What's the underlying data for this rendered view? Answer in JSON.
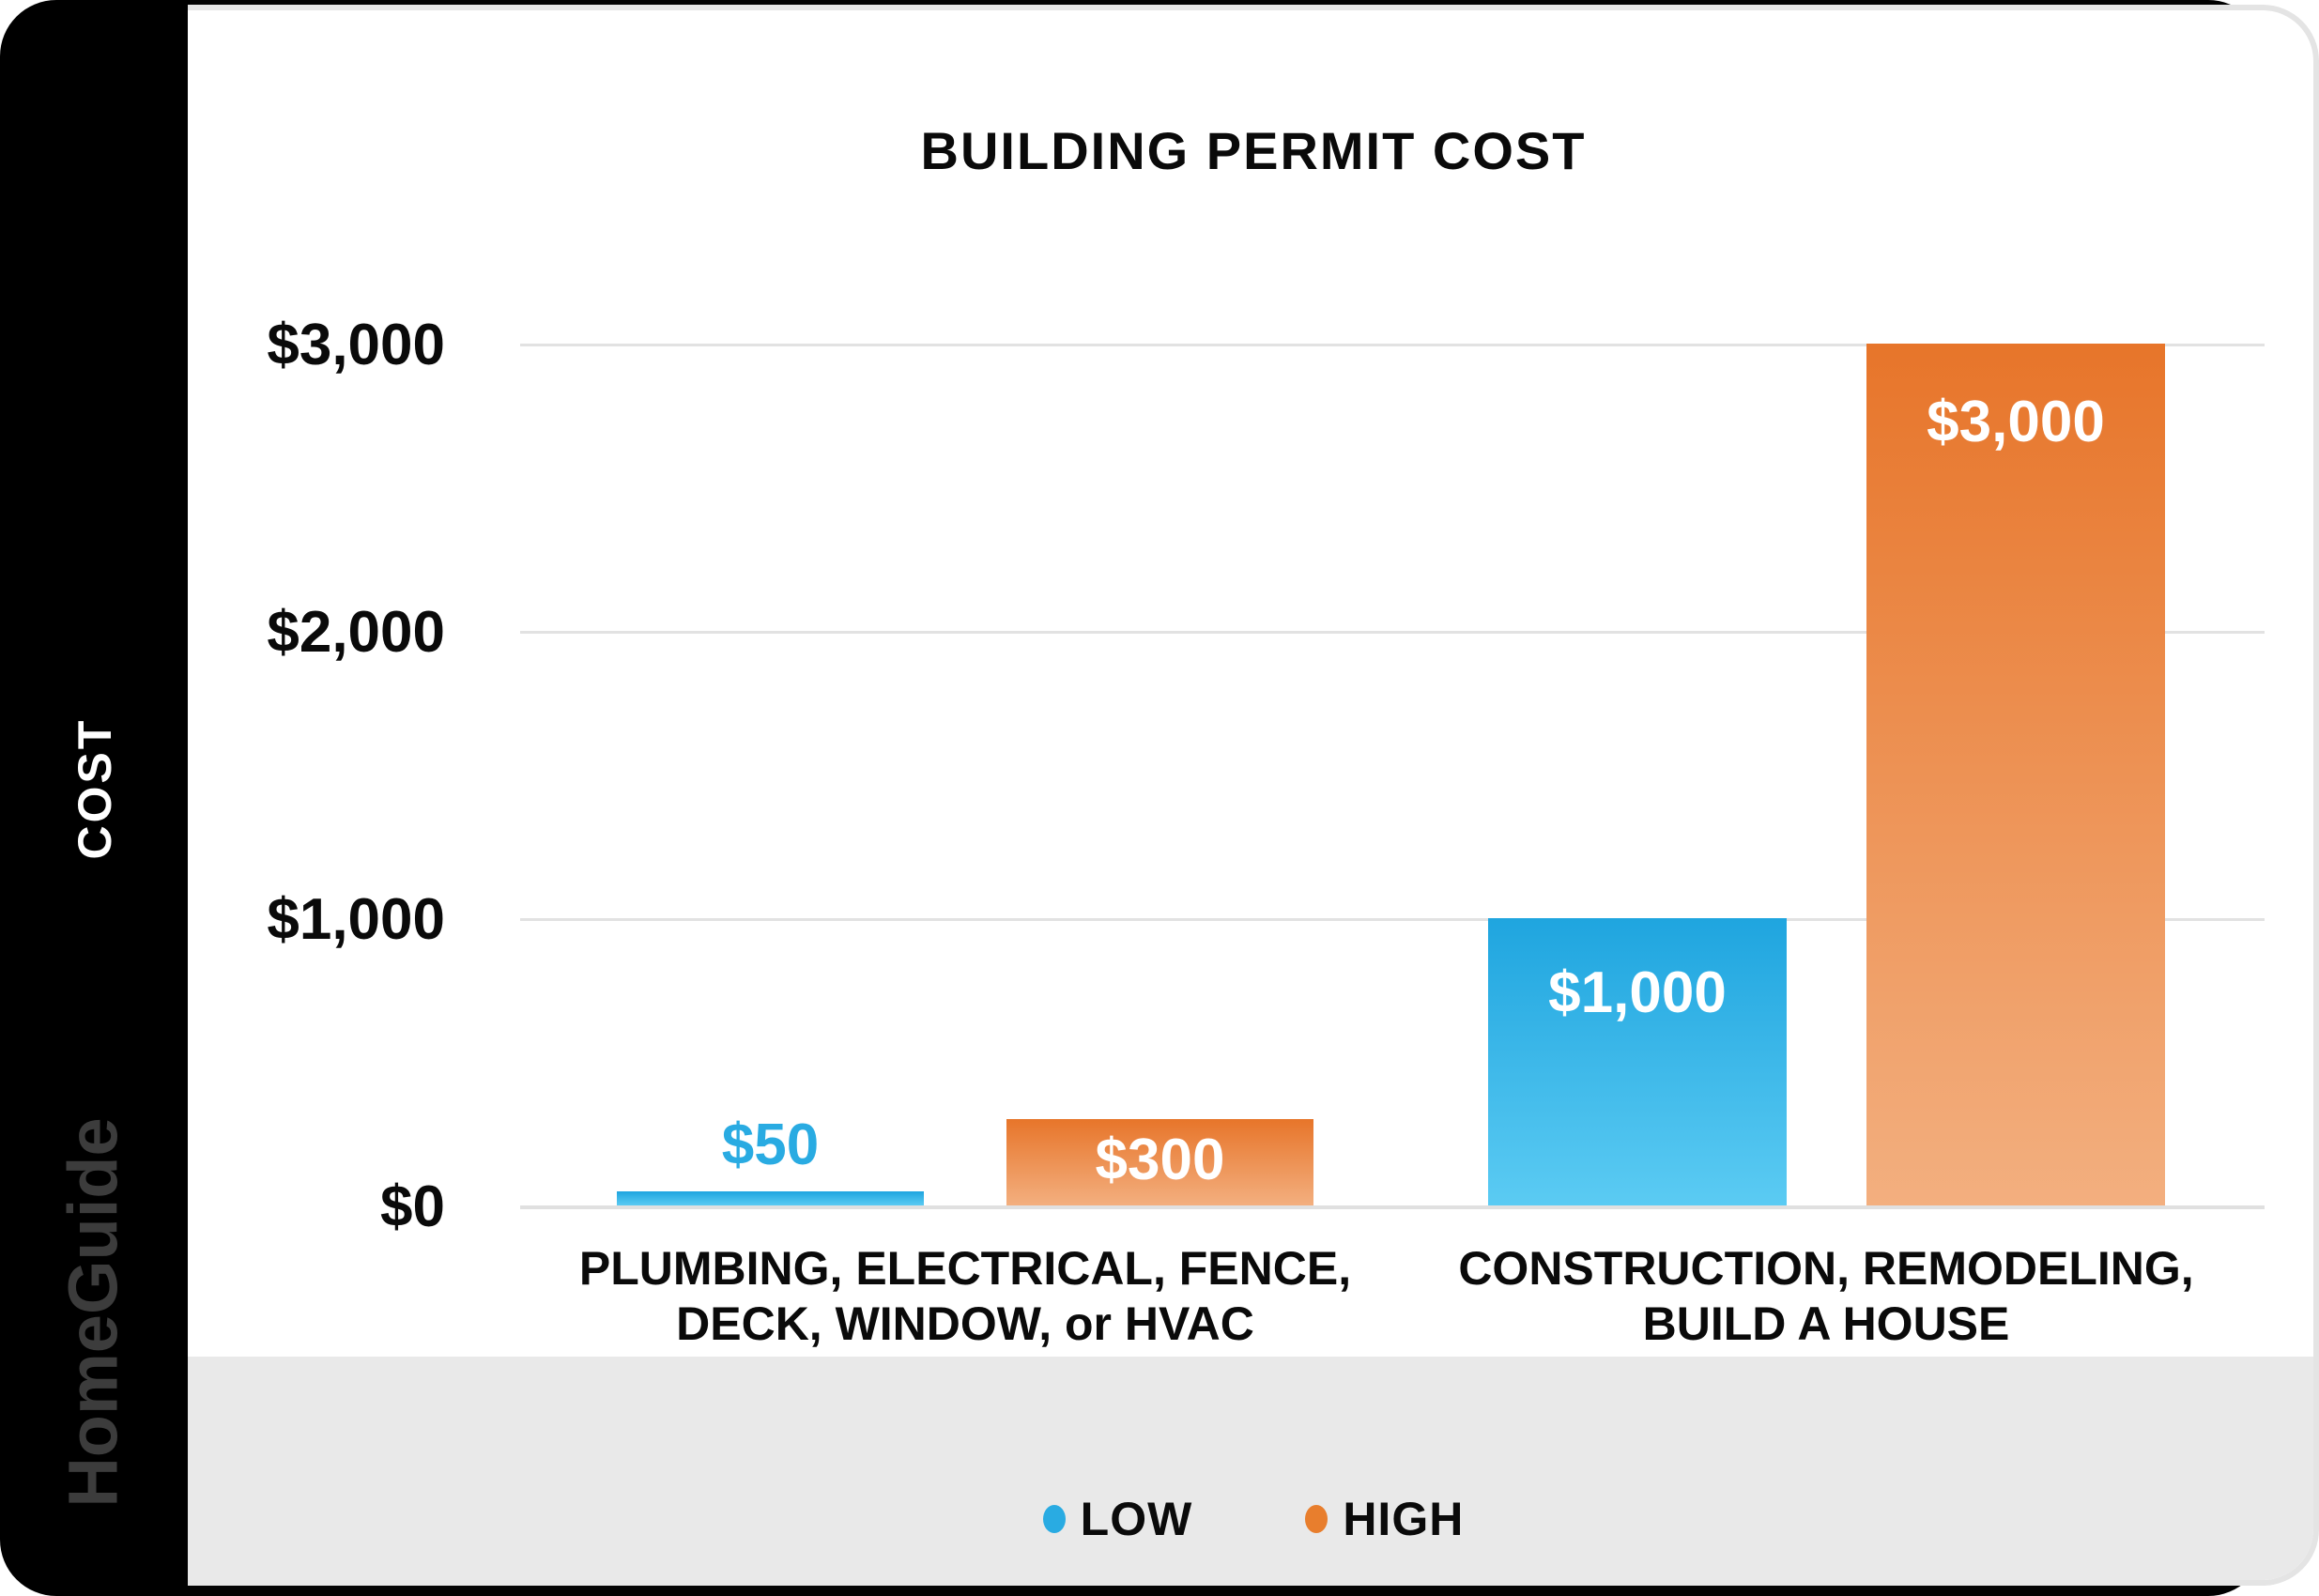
{
  "brand": {
    "watermark": "HomeGuide"
  },
  "chart_data": {
    "type": "bar",
    "title": "BUILDING PERMIT COST",
    "xlabel": "",
    "ylabel": "COST",
    "categories": [
      "PLUMBING, ELECTRICAL, FENCE, DECK, WINDOW, or HVAC",
      "CONSTRUCTION, REMODELING, BUILD A HOUSE"
    ],
    "category_lines": [
      [
        "PLUMBING, ELECTRICAL, FENCE,",
        "DECK, WINDOW, or HVAC"
      ],
      [
        "CONSTRUCTION, REMODELING,",
        "BUILD A HOUSE"
      ]
    ],
    "series": [
      {
        "name": "LOW",
        "color": "#29ABE2",
        "values": [
          50,
          1000
        ]
      },
      {
        "name": "HIGH",
        "color": "#E87E2D",
        "values": [
          300,
          3000
        ]
      }
    ],
    "bar_value_labels": {
      "low_1": "$50",
      "high_1": "$300",
      "low_2": "$1,000",
      "high_2": "$3,000"
    },
    "y_ticks": [
      "$0",
      "$1,000",
      "$2,000",
      "$3,000"
    ],
    "ylim": [
      0,
      3000
    ],
    "grid": true,
    "legend_position": "bottom"
  },
  "legend": {
    "items": [
      {
        "label": "LOW",
        "color": "#29ABE2"
      },
      {
        "label": "HIGH",
        "color": "#E87E2D"
      }
    ]
  },
  "colors": {
    "low_gradient_top": "#1FA5DF",
    "low_gradient_bottom": "#5BCBF3",
    "high_gradient_top": "#E7752A",
    "high_gradient_bottom": "#F3AF7F",
    "gridline": "#E2E2E2",
    "footer_band": "#E9E9E9",
    "sidebar": "#000000"
  }
}
